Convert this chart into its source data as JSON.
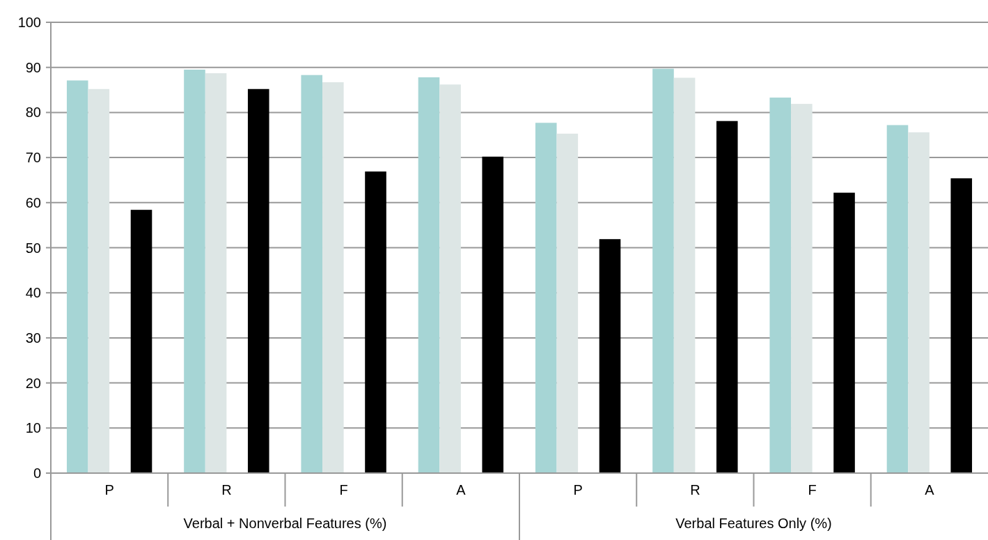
{
  "chart_data": {
    "type": "bar",
    "categories": [
      "P",
      "R",
      "F",
      "A",
      "P",
      "R",
      "F",
      "A"
    ],
    "series": [
      {
        "color": "#a6d5d5",
        "values": [
          87.1,
          89.5,
          88.3,
          87.8,
          77.7,
          89.7,
          83.3,
          77.2
        ]
      },
      {
        "color": "#dde6e5",
        "values": [
          85.2,
          88.7,
          86.7,
          86.2,
          75.3,
          87.7,
          81.9,
          75.6
        ]
      },
      {
        "values": [
          null,
          null,
          null,
          null,
          null,
          null,
          null,
          null
        ]
      },
      {
        "color": "#000000",
        "values": [
          58.4,
          85.2,
          66.9,
          70.2,
          51.9,
          78.1,
          62.2,
          65.4
        ]
      }
    ],
    "ylim": [
      0,
      100
    ],
    "yticks": [
      0,
      10,
      20,
      30,
      40,
      50,
      60,
      70,
      80,
      90,
      100
    ],
    "grid": "y",
    "annotations": [
      "Verbal + Nonverbal Features (%)",
      "Verbal Features Only (%)"
    ]
  }
}
